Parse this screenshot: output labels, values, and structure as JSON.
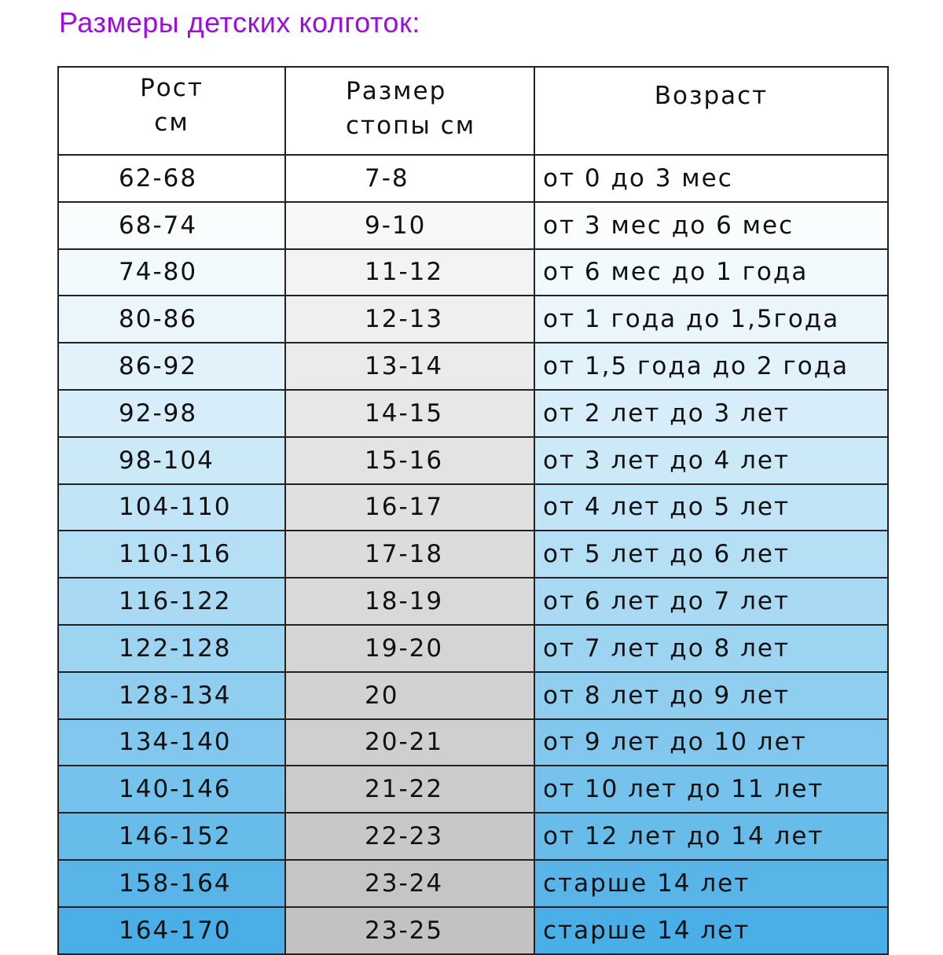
{
  "title": "Размеры детских колготок:",
  "headers": [
    "Рост\nсм",
    "Размер\nстопы см",
    "Возраст"
  ],
  "colors": {
    "title": "#9a0fe0",
    "blue_top": "#ffffff",
    "blue_bottom": "#4aafe6",
    "grey_top": "#ffffff",
    "grey_bottom": "#c2c2c2"
  },
  "rows": [
    [
      "62-68",
      "7-8",
      "от 0 до 3 мес"
    ],
    [
      "68-74",
      "9-10",
      "от 3 мес до 6 мес"
    ],
    [
      "74-80",
      "11-12",
      "от 6 мес до 1 года"
    ],
    [
      "80-86",
      "12-13",
      "от 1 года до 1,5года"
    ],
    [
      "86-92",
      "13-14",
      "от 1,5 года до 2 года"
    ],
    [
      "92-98",
      "14-15",
      "от 2 лет до 3 лет"
    ],
    [
      "98-104",
      "15-16",
      "от 3 лет до 4 лет"
    ],
    [
      "104-110",
      "16-17",
      "от 4 лет до 5 лет"
    ],
    [
      "110-116",
      "17-18",
      "от 5 лет до 6 лет"
    ],
    [
      "116-122",
      "18-19",
      "от 6 лет до 7 лет"
    ],
    [
      "122-128",
      "19-20",
      "от 7 лет до 8 лет"
    ],
    [
      "128-134",
      "20",
      "от 8 лет до 9 лет"
    ],
    [
      "134-140",
      "20-21",
      "от 9 лет до 10 лет"
    ],
    [
      "140-146",
      "21-22",
      "от 10 лет до 11 лет"
    ],
    [
      "146-152",
      "22-23",
      "от 12 лет до 14 лет"
    ],
    [
      "158-164",
      "23-24",
      "старше 14 лет"
    ],
    [
      "164-170",
      "23-25",
      "старше 14 лет"
    ]
  ]
}
